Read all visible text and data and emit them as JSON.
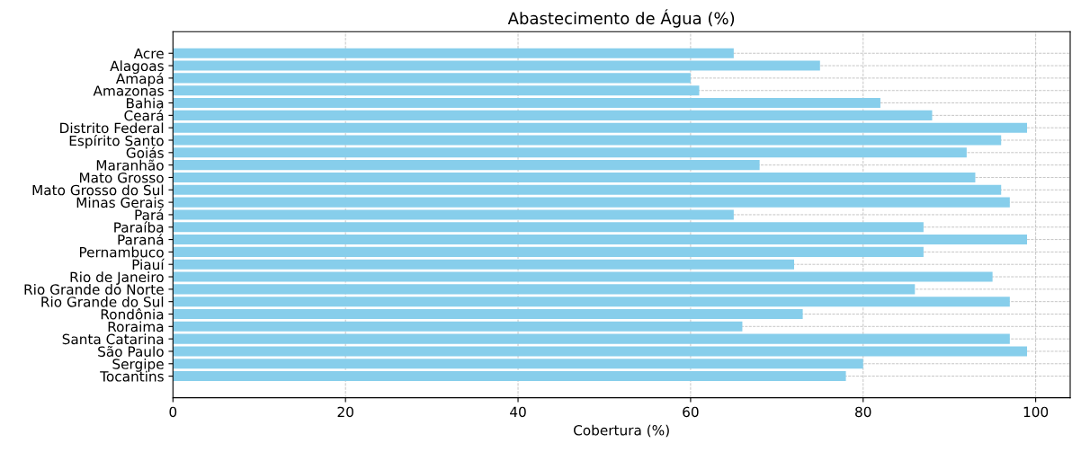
{
  "chart_data": {
    "type": "bar",
    "orientation": "horizontal",
    "title": "Abastecimento de Água (%)",
    "xlabel": "Cobertura (%)",
    "categories": [
      "Acre",
      "Alagoas",
      "Amapá",
      "Amazonas",
      "Bahia",
      "Ceará",
      "Distrito Federal",
      "Espírito Santo",
      "Goiás",
      "Maranhão",
      "Mato Grosso",
      "Mato Grosso do Sul",
      "Minas Gerais",
      "Pará",
      "Paraíba",
      "Paraná",
      "Pernambuco",
      "Piauí",
      "Rio de Janeiro",
      "Rio Grande do Norte",
      "Rio Grande do Sul",
      "Rondônia",
      "Roraima",
      "Santa Catarina",
      "São Paulo",
      "Sergipe",
      "Tocantins"
    ],
    "values": [
      65,
      75,
      60,
      61,
      82,
      88,
      99,
      96,
      92,
      68,
      93,
      96,
      97,
      65,
      87,
      99,
      87,
      72,
      95,
      86,
      97,
      73,
      66,
      97,
      99,
      80,
      78
    ],
    "color": "#87ceeb",
    "xlim": [
      0,
      104
    ],
    "xticks": [
      0,
      20,
      40,
      60,
      80,
      100
    ],
    "grid": true
  }
}
